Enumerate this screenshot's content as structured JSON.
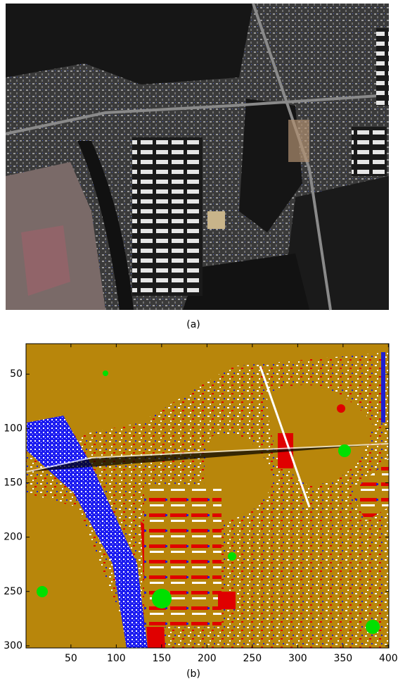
{
  "panels": [
    {
      "caption": "(a)"
    },
    {
      "caption": "(b)",
      "xlim": [
        0.5,
        400.5
      ],
      "ylim": [
        22,
        302
      ],
      "xticks": [
        50,
        100,
        150,
        200,
        250,
        300,
        350,
        400
      ],
      "yticks": [
        50,
        100,
        150,
        200,
        250,
        300
      ]
    }
  ]
}
